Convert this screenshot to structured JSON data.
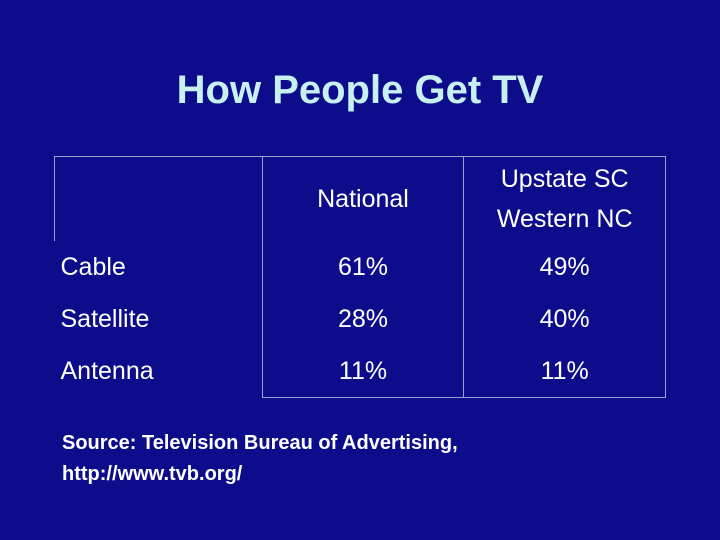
{
  "slide": {
    "title": "How People Get TV"
  },
  "table": {
    "headers": [
      "",
      "National",
      "Upstate SC\nWestern NC"
    ],
    "header_lines": {
      "col2_line1": "Upstate SC",
      "col2_line2": "Western NC"
    },
    "rows": [
      {
        "label": "Cable",
        "national": "61%",
        "upstate": "49%"
      },
      {
        "label": "Satellite",
        "national": "28%",
        "upstate": "40%"
      },
      {
        "label": "Antenna",
        "national": "11%",
        "upstate": "11%"
      }
    ]
  },
  "source": {
    "line1": "Source: Television Bureau of Advertising,",
    "line2": "http://www.tvb.org/"
  },
  "colors": {
    "background": "#0d0d8c",
    "title": "#c8f0f0",
    "text": "#ffffff"
  }
}
